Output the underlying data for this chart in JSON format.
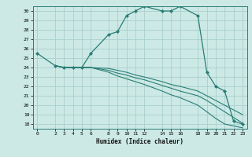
{
  "xlabel": "Humidex (Indice chaleur)",
  "bg_color": "#cce9e5",
  "grid_color": "#aacfcc",
  "line_color": "#2a7d76",
  "xlim": [
    -0.5,
    23.5
  ],
  "ylim": [
    17.5,
    30.5
  ],
  "yticks": [
    18,
    19,
    20,
    21,
    22,
    23,
    24,
    25,
    26,
    27,
    28,
    29,
    30
  ],
  "xticks": [
    0,
    2,
    3,
    4,
    5,
    6,
    8,
    9,
    10,
    11,
    12,
    14,
    15,
    16,
    18,
    19,
    20,
    21,
    22,
    23
  ],
  "lines": [
    {
      "x": [
        0,
        2,
        3,
        4,
        5,
        6,
        8,
        9,
        10,
        11,
        12,
        14,
        15,
        16,
        18,
        19,
        20,
        21,
        22,
        23
      ],
      "y": [
        25.5,
        24.2,
        24.0,
        24.0,
        24.0,
        25.5,
        27.5,
        27.8,
        29.5,
        30.0,
        30.5,
        30.0,
        30.0,
        30.5,
        29.5,
        23.5,
        22.0,
        21.5,
        18.3,
        18.0
      ],
      "marker": true
    },
    {
      "x": [
        2,
        3,
        4,
        5,
        6,
        8,
        9,
        10,
        11,
        12,
        14,
        15,
        16,
        18,
        19,
        20,
        21,
        22,
        23
      ],
      "y": [
        24.2,
        24.0,
        24.0,
        24.0,
        24.0,
        23.9,
        23.7,
        23.5,
        23.2,
        23.0,
        22.5,
        22.2,
        22.0,
        21.5,
        21.0,
        20.5,
        20.0,
        19.5,
        19.0
      ],
      "marker": false
    },
    {
      "x": [
        2,
        3,
        4,
        5,
        6,
        8,
        9,
        10,
        11,
        12,
        14,
        15,
        16,
        18,
        19,
        20,
        21,
        22,
        23
      ],
      "y": [
        24.2,
        24.0,
        24.0,
        24.0,
        24.0,
        23.7,
        23.4,
        23.2,
        22.9,
        22.7,
        22.1,
        21.8,
        21.5,
        21.0,
        20.5,
        19.9,
        19.3,
        18.7,
        18.1
      ],
      "marker": false
    },
    {
      "x": [
        2,
        3,
        4,
        5,
        6,
        8,
        9,
        10,
        11,
        12,
        14,
        15,
        16,
        18,
        19,
        20,
        21,
        22,
        23
      ],
      "y": [
        24.2,
        24.0,
        24.0,
        24.0,
        24.0,
        23.5,
        23.1,
        22.8,
        22.5,
        22.2,
        21.5,
        21.1,
        20.8,
        20.0,
        19.3,
        18.6,
        18.0,
        17.8,
        17.6
      ],
      "marker": false
    }
  ]
}
